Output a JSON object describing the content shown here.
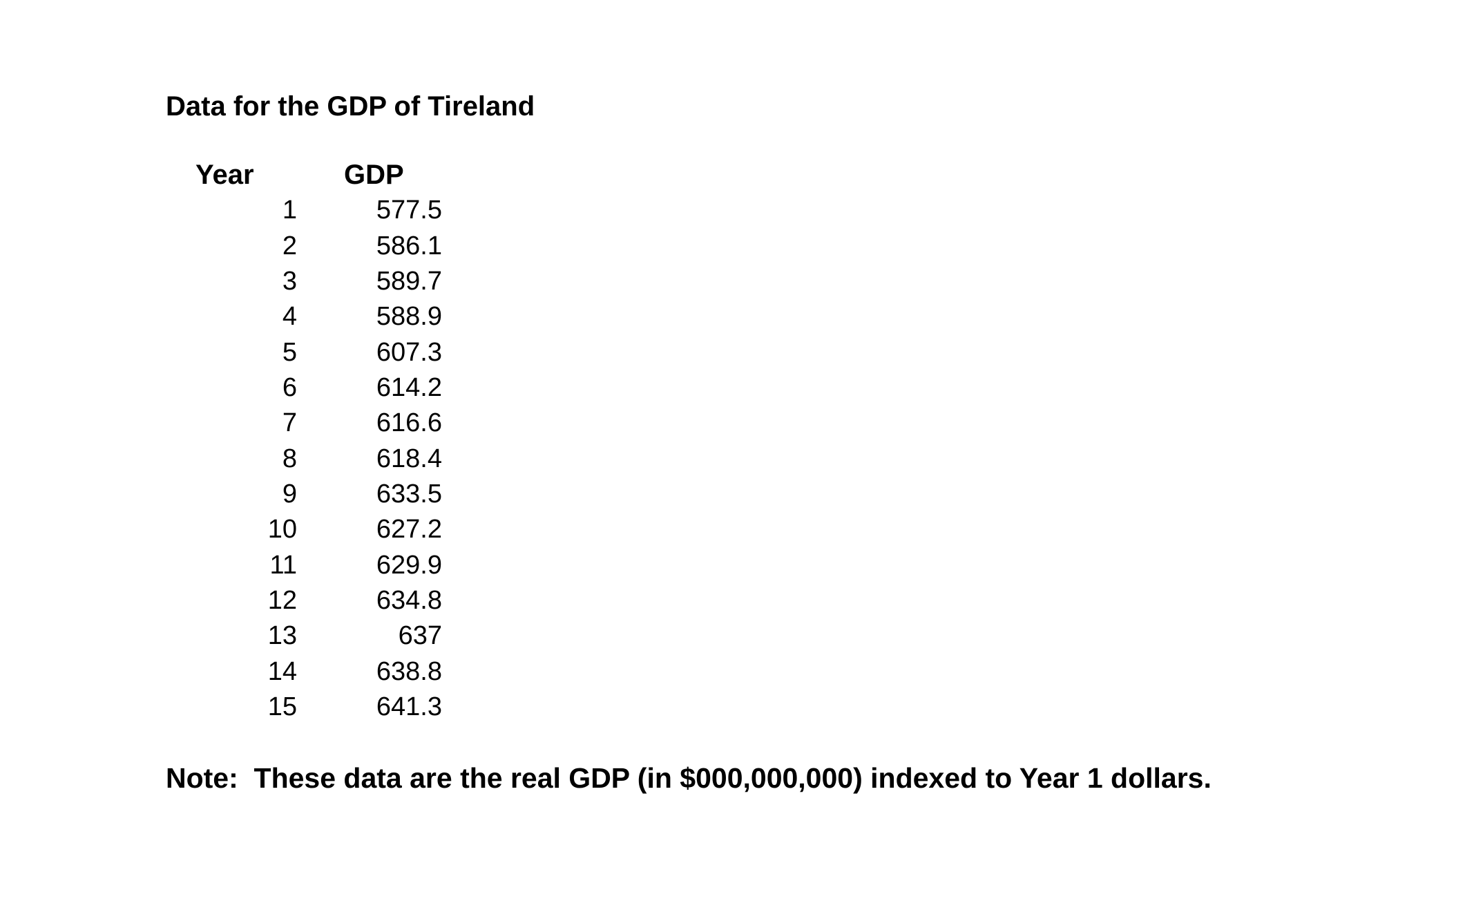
{
  "document": {
    "title": "Data for the GDP of Tireland",
    "note": "Note:  These data are the real GDP (in $000,000,000) indexed to Year 1 dollars."
  },
  "table": {
    "columns": [
      "Year",
      "GDP"
    ],
    "rows": [
      [
        "1",
        "577.5"
      ],
      [
        "2",
        "586.1"
      ],
      [
        "3",
        "589.7"
      ],
      [
        "4",
        "588.9"
      ],
      [
        "5",
        "607.3"
      ],
      [
        "6",
        "614.2"
      ],
      [
        "7",
        "616.6"
      ],
      [
        "8",
        "618.4"
      ],
      [
        "9",
        "633.5"
      ],
      [
        "10",
        "627.2"
      ],
      [
        "11",
        "629.9"
      ],
      [
        "12",
        "634.8"
      ],
      [
        "13",
        "637"
      ],
      [
        "14",
        "638.8"
      ],
      [
        "15",
        "641.3"
      ]
    ]
  },
  "colors": {
    "text": "#000000",
    "background": "#ffffff"
  }
}
